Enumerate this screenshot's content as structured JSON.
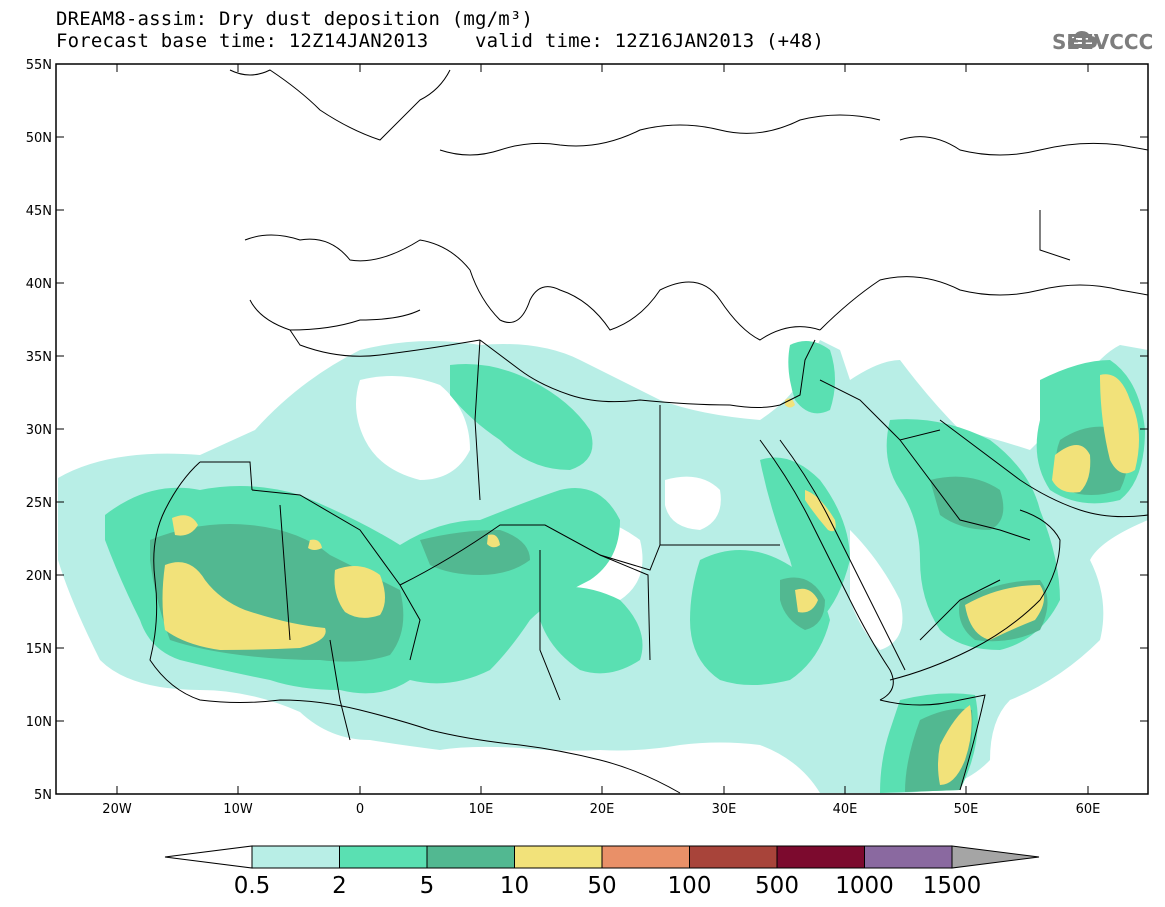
{
  "title_line1": "DREAM8-assim: Dry dust deposition (mg/m³)",
  "title_line2": "Forecast base time: 12Z14JAN2013    valid time: 12Z16JAN2013 (+48)",
  "logo_text": "SEEVCCC",
  "lat_labels": [
    "55N",
    "50N",
    "45N",
    "40N",
    "35N",
    "30N",
    "25N",
    "20N",
    "15N",
    "10N",
    "5N"
  ],
  "lon_labels": [
    "20W",
    "10W",
    "0",
    "10E",
    "20E",
    "30E",
    "40E",
    "50E",
    "60E"
  ],
  "colorbar": {
    "colors": [
      "#b8eee6",
      "#5ae0b2",
      "#52b891",
      "#f2e27a",
      "#e99068",
      "#a8443a",
      "#7c0a2e",
      "#8a69a0"
    ],
    "under_color": "#ffffff",
    "over_color": "#a5a5a5",
    "labels": [
      "0.5",
      "2",
      "5",
      "10",
      "50",
      "100",
      "500",
      "1000",
      "1500"
    ]
  },
  "legend_colors": {
    "c1": "#b8eee6",
    "c2": "#5ae0b2",
    "c3": "#52b891",
    "c4": "#f2e27a"
  }
}
